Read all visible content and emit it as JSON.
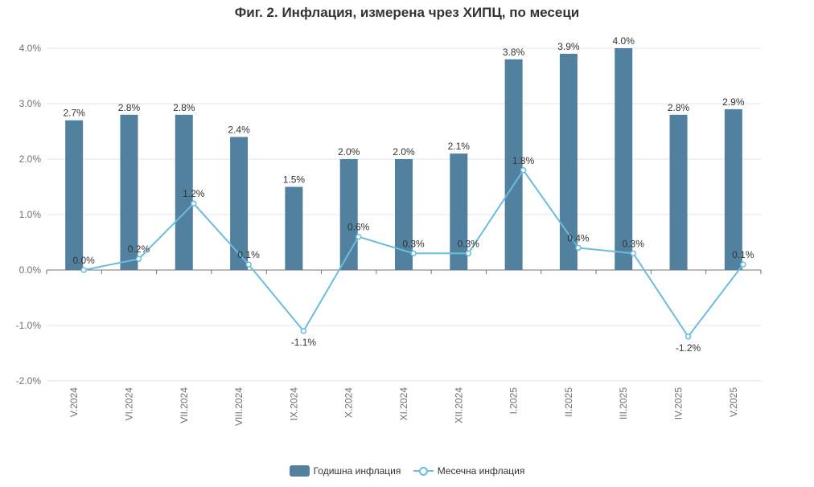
{
  "chart_data": {
    "type": "bar",
    "title": "Фиг. 2. Инфлация, измерена чрез ХИПЦ, по месеци",
    "categories": [
      "V.2024",
      "VI.2024",
      "VII.2024",
      "VIII.2024",
      "IX.2024",
      "X.2024",
      "XI.2024",
      "XII.2024",
      "I.2025",
      "II.2025",
      "III.2025",
      "IV.2025",
      "V.2025"
    ],
    "series": [
      {
        "name": "Годишна инфлация",
        "type": "bar",
        "color": "#52809f",
        "values": [
          2.7,
          2.8,
          2.8,
          2.4,
          1.5,
          2.0,
          2.0,
          2.1,
          3.8,
          3.9,
          4.0,
          2.8,
          2.9
        ]
      },
      {
        "name": "Месечна инфлация",
        "type": "line",
        "color": "#6bbcdf",
        "values": [
          0.0,
          0.2,
          1.2,
          0.1,
          -1.1,
          0.6,
          0.3,
          0.3,
          1.8,
          0.4,
          0.3,
          -1.2,
          0.1
        ]
      }
    ],
    "ylim": [
      -2.0,
      4.0
    ],
    "yticks": [
      "-2.0%",
      "-1.0%",
      "0.0%",
      "1.0%",
      "2.0%",
      "3.0%",
      "4.0%"
    ],
    "value_suffix": "%",
    "grid": true,
    "legend_position": "bottom"
  }
}
